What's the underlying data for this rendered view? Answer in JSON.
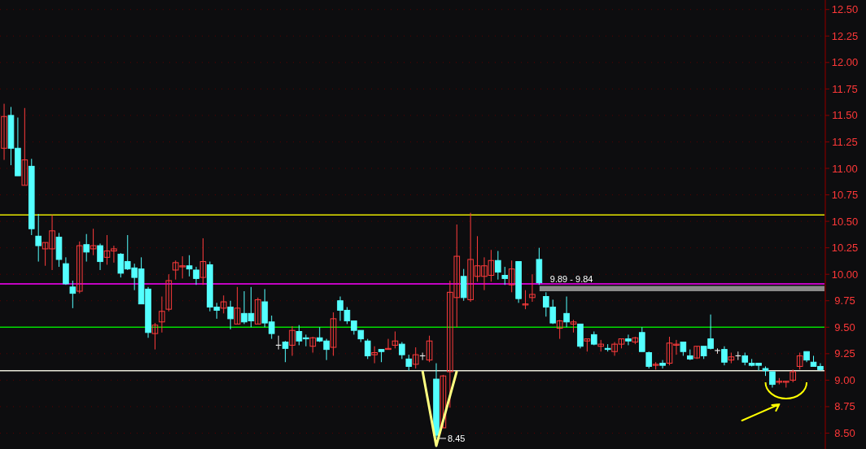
{
  "chart_data": {
    "type": "candlestick",
    "categories": [
      null,
      null,
      null,
      null,
      null,
      null,
      null,
      null,
      null,
      null,
      null,
      null,
      null,
      null,
      null,
      null,
      null,
      null,
      null,
      null,
      null,
      null,
      null,
      null,
      null,
      null,
      null,
      null,
      null,
      null,
      null,
      null,
      null,
      null,
      null,
      null,
      null,
      null,
      null,
      null,
      null,
      null,
      null,
      null,
      null,
      null,
      null,
      null,
      null,
      null,
      null,
      null,
      null,
      null,
      null,
      null,
      null,
      null,
      null,
      null,
      null,
      null,
      null,
      null,
      null,
      null,
      null,
      null,
      null,
      null,
      null,
      null,
      null,
      null,
      null,
      null,
      null,
      null,
      null,
      null,
      null,
      null,
      null,
      null,
      null,
      null,
      null,
      null,
      null,
      null,
      null,
      null,
      null,
      null,
      null,
      null,
      null,
      null,
      null,
      null,
      null,
      null,
      null,
      null,
      null,
      null,
      null,
      null,
      null,
      null,
      null,
      null,
      null,
      null,
      null,
      null,
      null,
      null,
      null,
      null
    ],
    "ohlc": [
      [
        11.19,
        11.61,
        11.08,
        11.49
      ],
      [
        11.5,
        11.58,
        11.03,
        11.19
      ],
      [
        11.19,
        11.48,
        10.93,
        10.93
      ],
      [
        10.84,
        11.57,
        10.84,
        11.08
      ],
      [
        11.02,
        11.09,
        10.37,
        10.43
      ],
      [
        10.36,
        10.57,
        10.12,
        10.27
      ],
      [
        10.24,
        10.3,
        10.08,
        10.3
      ],
      [
        10.24,
        10.56,
        10.04,
        10.41
      ],
      [
        10.35,
        10.39,
        10.07,
        10.14
      ],
      [
        10.1,
        10.16,
        9.9,
        9.91
      ],
      [
        9.88,
        9.94,
        9.68,
        9.82
      ],
      [
        9.84,
        10.31,
        9.82,
        10.27
      ],
      [
        10.28,
        10.38,
        10.12,
        10.21
      ],
      [
        10.24,
        10.43,
        10.18,
        10.27
      ],
      [
        10.27,
        10.29,
        10.04,
        10.12
      ],
      [
        10.16,
        10.37,
        10.09,
        10.22
      ],
      [
        10.22,
        10.27,
        10.11,
        10.24
      ],
      [
        10.19,
        10.2,
        9.97,
        10.01
      ],
      [
        10.12,
        10.37,
        10.04,
        10.05
      ],
      [
        10.06,
        10.1,
        9.85,
        9.97
      ],
      [
        10.05,
        10.16,
        9.72,
        9.72
      ],
      [
        9.86,
        9.88,
        9.4,
        9.45
      ],
      [
        9.44,
        9.54,
        9.29,
        9.52
      ],
      [
        9.55,
        9.79,
        9.45,
        9.65
      ],
      [
        9.67,
        10.0,
        9.65,
        9.94
      ],
      [
        10.04,
        10.13,
        9.95,
        10.11
      ],
      [
        10.07,
        10.17,
        9.96,
        10.08
      ],
      [
        10.08,
        10.18,
        9.98,
        10.05
      ],
      [
        10.04,
        10.07,
        9.9,
        9.96
      ],
      [
        9.97,
        10.34,
        9.9,
        10.12
      ],
      [
        10.09,
        10.12,
        9.65,
        9.69
      ],
      [
        9.69,
        9.73,
        9.58,
        9.66
      ],
      [
        9.68,
        9.8,
        9.63,
        9.74
      ],
      [
        9.69,
        9.75,
        9.48,
        9.58
      ],
      [
        9.53,
        9.88,
        9.53,
        9.68
      ],
      [
        9.63,
        9.84,
        9.53,
        9.55
      ],
      [
        9.63,
        9.88,
        9.5,
        9.56
      ],
      [
        9.53,
        9.78,
        9.53,
        9.76
      ],
      [
        9.74,
        9.86,
        9.5,
        9.54
      ],
      [
        9.55,
        9.61,
        9.39,
        9.44
      ],
      [
        9.33,
        9.42,
        9.29,
        9.33
      ],
      [
        9.36,
        9.37,
        9.17,
        9.3
      ],
      [
        9.33,
        9.51,
        9.23,
        9.47
      ],
      [
        9.46,
        9.52,
        9.33,
        9.37
      ],
      [
        9.4,
        9.43,
        9.32,
        9.39
      ],
      [
        9.32,
        9.41,
        9.26,
        9.4
      ],
      [
        9.4,
        9.5,
        9.36,
        9.37
      ],
      [
        9.37,
        9.39,
        9.19,
        9.29
      ],
      [
        9.31,
        9.64,
        9.23,
        9.58
      ],
      [
        9.75,
        9.79,
        9.56,
        9.66
      ],
      [
        9.66,
        9.69,
        9.53,
        9.56
      ],
      [
        9.56,
        9.56,
        9.43,
        9.47
      ],
      [
        9.47,
        9.47,
        9.36,
        9.39
      ],
      [
        9.37,
        9.39,
        9.2,
        9.23
      ],
      [
        9.24,
        9.32,
        9.16,
        9.26
      ],
      [
        9.29,
        9.29,
        9.17,
        9.27
      ],
      [
        9.29,
        9.39,
        9.29,
        9.3
      ],
      [
        9.33,
        9.46,
        9.3,
        9.37
      ],
      [
        9.34,
        9.36,
        9.2,
        9.24
      ],
      [
        9.2,
        9.24,
        9.09,
        9.13
      ],
      [
        9.15,
        9.31,
        9.11,
        9.24
      ],
      [
        9.23,
        9.26,
        9.19,
        9.23
      ],
      [
        9.19,
        9.42,
        9.17,
        9.37
      ],
      [
        9.01,
        9.16,
        8.45,
        8.48
      ],
      [
        8.55,
        9.05,
        8.55,
        9.04
      ],
      [
        9.08,
        9.94,
        8.74,
        9.83
      ],
      [
        9.78,
        10.47,
        9.5,
        10.17
      ],
      [
        9.98,
        10.05,
        9.75,
        9.78
      ],
      [
        9.76,
        10.58,
        9.74,
        10.14
      ],
      [
        9.98,
        10.36,
        9.93,
        10.08
      ],
      [
        9.98,
        10.16,
        9.85,
        10.08
      ],
      [
        9.99,
        10.23,
        9.93,
        10.13
      ],
      [
        10.13,
        10.22,
        9.95,
        10.02
      ],
      [
        9.99,
        10.07,
        9.9,
        9.96
      ],
      [
        9.9,
        10.13,
        9.83,
        10.05
      ],
      [
        10.12,
        10.12,
        9.73,
        9.77
      ],
      [
        9.71,
        9.85,
        9.67,
        9.72
      ],
      [
        9.78,
        10.0,
        9.74,
        9.81
      ],
      [
        10.14,
        10.25,
        9.9,
        9.92
      ],
      [
        9.79,
        9.83,
        9.6,
        9.69
      ],
      [
        9.69,
        9.76,
        9.53,
        9.54
      ],
      [
        9.49,
        9.57,
        9.39,
        9.56
      ],
      [
        9.63,
        9.79,
        9.5,
        9.55
      ],
      [
        9.53,
        9.57,
        9.45,
        9.55
      ],
      [
        9.53,
        9.53,
        9.3,
        9.32
      ],
      [
        9.37,
        9.39,
        9.27,
        9.39
      ],
      [
        9.43,
        9.46,
        9.33,
        9.34
      ],
      [
        9.32,
        9.38,
        9.27,
        9.34
      ],
      [
        9.3,
        9.34,
        9.27,
        9.29
      ],
      [
        9.27,
        9.36,
        9.23,
        9.34
      ],
      [
        9.34,
        9.39,
        9.3,
        9.39
      ],
      [
        9.39,
        9.43,
        9.33,
        9.37
      ],
      [
        9.36,
        9.41,
        9.34,
        9.4
      ],
      [
        9.45,
        9.5,
        9.27,
        9.27
      ],
      [
        9.26,
        9.27,
        9.11,
        9.13
      ],
      [
        9.14,
        9.17,
        9.1,
        9.15
      ],
      [
        9.16,
        9.19,
        9.11,
        9.14
      ],
      [
        9.16,
        9.41,
        9.14,
        9.35
      ],
      [
        9.33,
        9.38,
        9.24,
        9.34
      ],
      [
        9.36,
        9.36,
        9.23,
        9.27
      ],
      [
        9.23,
        9.29,
        9.19,
        9.2
      ],
      [
        9.21,
        9.32,
        9.2,
        9.32
      ],
      [
        9.32,
        9.32,
        9.2,
        9.23
      ],
      [
        9.39,
        9.62,
        9.29,
        9.3
      ],
      [
        9.28,
        9.3,
        9.25,
        9.28
      ],
      [
        9.29,
        9.32,
        9.14,
        9.17
      ],
      [
        9.19,
        9.26,
        9.16,
        9.22
      ],
      [
        9.23,
        9.27,
        9.19,
        9.23
      ],
      [
        9.23,
        9.26,
        9.14,
        9.17
      ],
      [
        9.16,
        9.2,
        9.13,
        9.14
      ],
      [
        9.16,
        9.16,
        9.09,
        9.14
      ],
      [
        9.11,
        9.13,
        9.04,
        9.09
      ],
      [
        9.08,
        9.08,
        8.93,
        8.96
      ],
      [
        8.98,
        9.02,
        8.96,
        8.99
      ],
      [
        8.98,
        8.99,
        8.93,
        8.99
      ],
      [
        9.0,
        9.1,
        8.98,
        9.08
      ],
      [
        9.13,
        9.26,
        9.1,
        9.23
      ],
      [
        9.27,
        9.27,
        9.17,
        9.19
      ],
      [
        9.17,
        9.23,
        9.13,
        9.13
      ],
      [
        9.13,
        9.16,
        9.09,
        9.1
      ]
    ],
    "ylim": [
      8.35,
      12.59
    ],
    "yticks": [
      {
        "value": 8.5,
        "label": "8.50"
      },
      {
        "value": 8.75,
        "label": "8.75"
      },
      {
        "value": 9,
        "label": "9.00"
      },
      {
        "value": 9.25,
        "label": "9.25"
      },
      {
        "value": 9.5,
        "label": "9.50"
      },
      {
        "value": 9.75,
        "label": "9.75"
      },
      {
        "value": 10,
        "label": "10.00"
      },
      {
        "value": 10.25,
        "label": "10.25"
      },
      {
        "value": 10.5,
        "label": "10.50"
      },
      {
        "value": 10.75,
        "label": "10.75"
      },
      {
        "value": 11,
        "label": "11.00"
      },
      {
        "value": 11.25,
        "label": "11.25"
      },
      {
        "value": 11.5,
        "label": "11.50"
      },
      {
        "value": 11.75,
        "label": "11.75"
      },
      {
        "value": 12,
        "label": "12.00"
      },
      {
        "value": 12.25,
        "label": "12.25"
      },
      {
        "value": 12.5,
        "label": "12.50"
      }
    ],
    "tick_labels": "y",
    "grid": "y",
    "ref_lines": [
      {
        "axis": "y",
        "value": 10.56,
        "color": "#e6e600"
      },
      {
        "axis": "y",
        "value": 9.91,
        "color": "#ff00ff"
      },
      {
        "axis": "y",
        "value": 9.5,
        "color": "#00dd00"
      },
      {
        "axis": "y",
        "value": 9.09,
        "color": "#e8e8d8"
      }
    ],
    "bands": [
      {
        "axis": "y",
        "from": 9.84,
        "to": 9.89,
        "label": "9.89 - 9.84",
        "color": "#8a8a8a"
      }
    ],
    "annotations": [
      "8.45"
    ]
  }
}
